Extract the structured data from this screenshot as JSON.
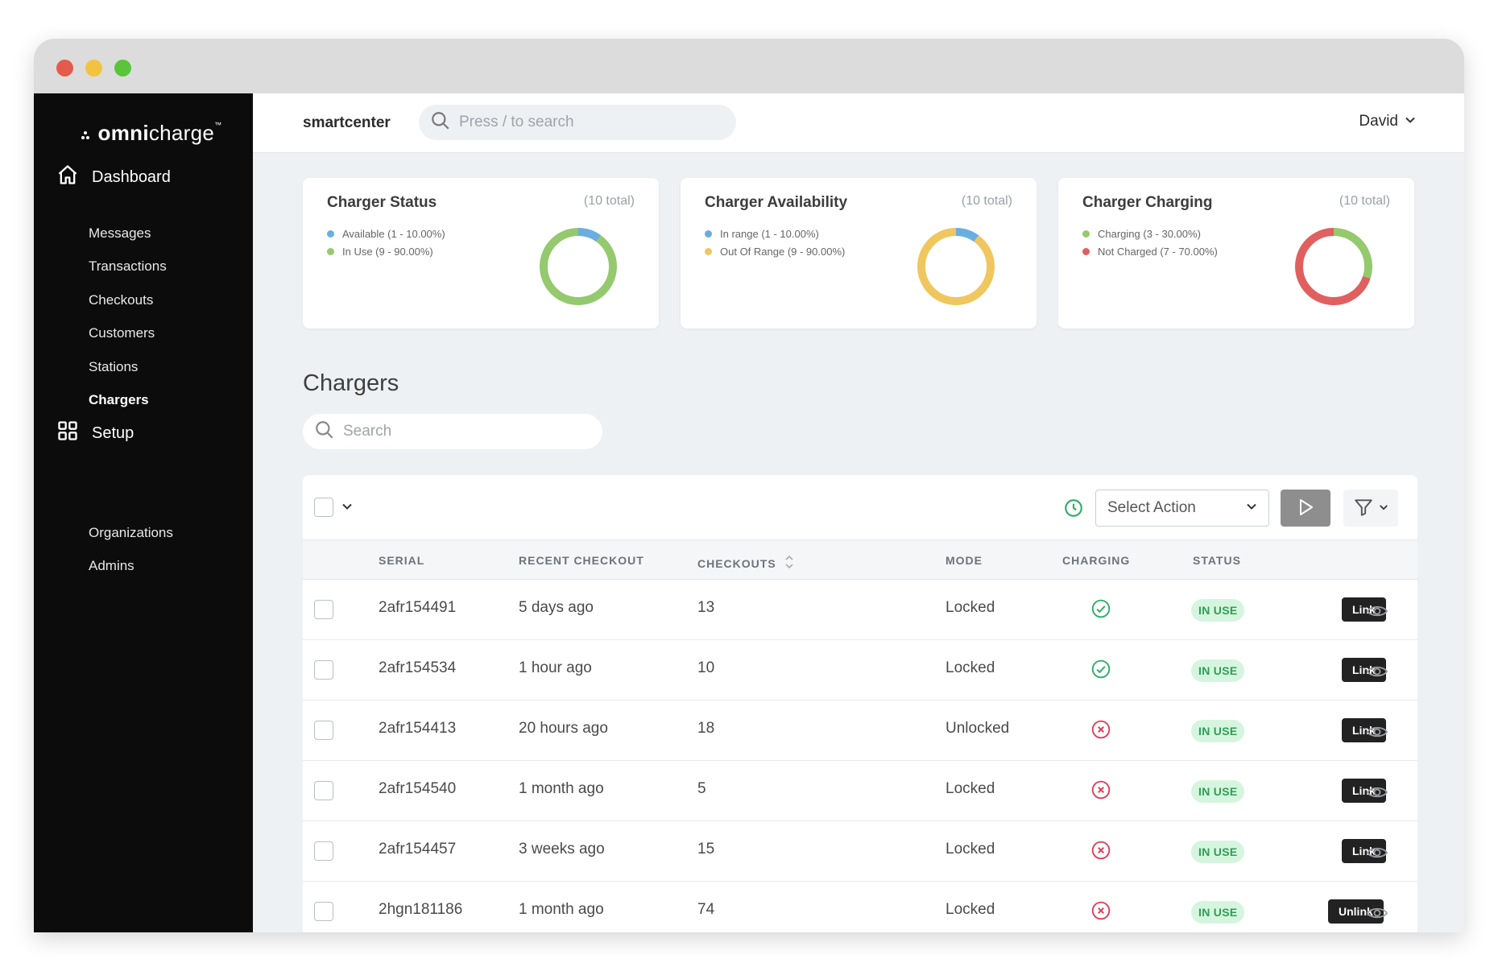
{
  "window": {
    "dots": [
      "#e45a4c",
      "#f2c33e",
      "#5ac53b"
    ]
  },
  "sidebar": {
    "logo": {
      "prefix": "omni",
      "suffix": "charge",
      "tm": "™"
    },
    "sections": [
      {
        "label": "Dashboard",
        "icon": "home-icon"
      },
      {
        "label": "Setup",
        "icon": "grid-icon"
      }
    ],
    "dashboard_items": [
      "Messages",
      "Transactions",
      "Checkouts",
      "Customers",
      "Stations",
      "Chargers"
    ],
    "setup_items": [
      "Organizations",
      "Admins"
    ],
    "active_item": "Chargers"
  },
  "topbar": {
    "brand": "smartcenter",
    "search_placeholder": "Press / to search",
    "user": "David"
  },
  "cards": [
    {
      "title": "Charger Status",
      "total": "(10 total)",
      "legend": [
        {
          "label": "Available (1 - 10.00%)",
          "color": "#6aaee0",
          "value": 0.1
        },
        {
          "label": "In Use (9 - 90.00%)",
          "color": "#95c96e",
          "value": 0.9
        }
      ]
    },
    {
      "title": "Charger Availability",
      "total": "(10 total)",
      "legend": [
        {
          "label": "In range (1 - 10.00%)",
          "color": "#6aaee0",
          "value": 0.1
        },
        {
          "label": "Out Of Range (9 - 90.00%)",
          "color": "#f0c75e",
          "value": 0.9
        }
      ]
    },
    {
      "title": "Charger Charging",
      "total": "(10 total)",
      "legend": [
        {
          "label": "Charging (3 - 30.00%)",
          "color": "#95c96e",
          "value": 0.3
        },
        {
          "label": "Not Charged (7 - 70.00%)",
          "color": "#e06060",
          "value": 0.7
        }
      ]
    }
  ],
  "chargers": {
    "title": "Chargers",
    "search_placeholder": "Search",
    "select_action": "Select Action",
    "columns": {
      "serial": "SERIAL",
      "recent_checkout": "RECENT CHECKOUT",
      "checkouts": "CHECKOUTS",
      "mode": "MODE",
      "charging": "CHARGING",
      "status": "STATUS"
    },
    "rows": [
      {
        "serial": "2afr154491",
        "recent": "5 days ago",
        "checkouts": "13",
        "mode": "Locked",
        "charging": true,
        "status": "IN USE",
        "action": "Link"
      },
      {
        "serial": "2afr154534",
        "recent": "1 hour ago",
        "checkouts": "10",
        "mode": "Locked",
        "charging": true,
        "status": "IN USE",
        "action": "Link"
      },
      {
        "serial": "2afr154413",
        "recent": "20 hours ago",
        "checkouts": "18",
        "mode": "Unlocked",
        "charging": false,
        "status": "IN USE",
        "action": "Link"
      },
      {
        "serial": "2afr154540",
        "recent": "1 month ago",
        "checkouts": "5",
        "mode": "Locked",
        "charging": false,
        "status": "IN USE",
        "action": "Link"
      },
      {
        "serial": "2afr154457",
        "recent": "3 weeks ago",
        "checkouts": "15",
        "mode": "Locked",
        "charging": false,
        "status": "IN USE",
        "action": "Link"
      },
      {
        "serial": "2hgn181186",
        "recent": "1 month ago",
        "checkouts": "74",
        "mode": "Locked",
        "charging": false,
        "status": "IN USE",
        "action": "Unlink"
      }
    ]
  },
  "colors": {
    "charging_yes": "#2fae6a",
    "charging_no": "#e0405a",
    "clock": "#2fae6a"
  }
}
